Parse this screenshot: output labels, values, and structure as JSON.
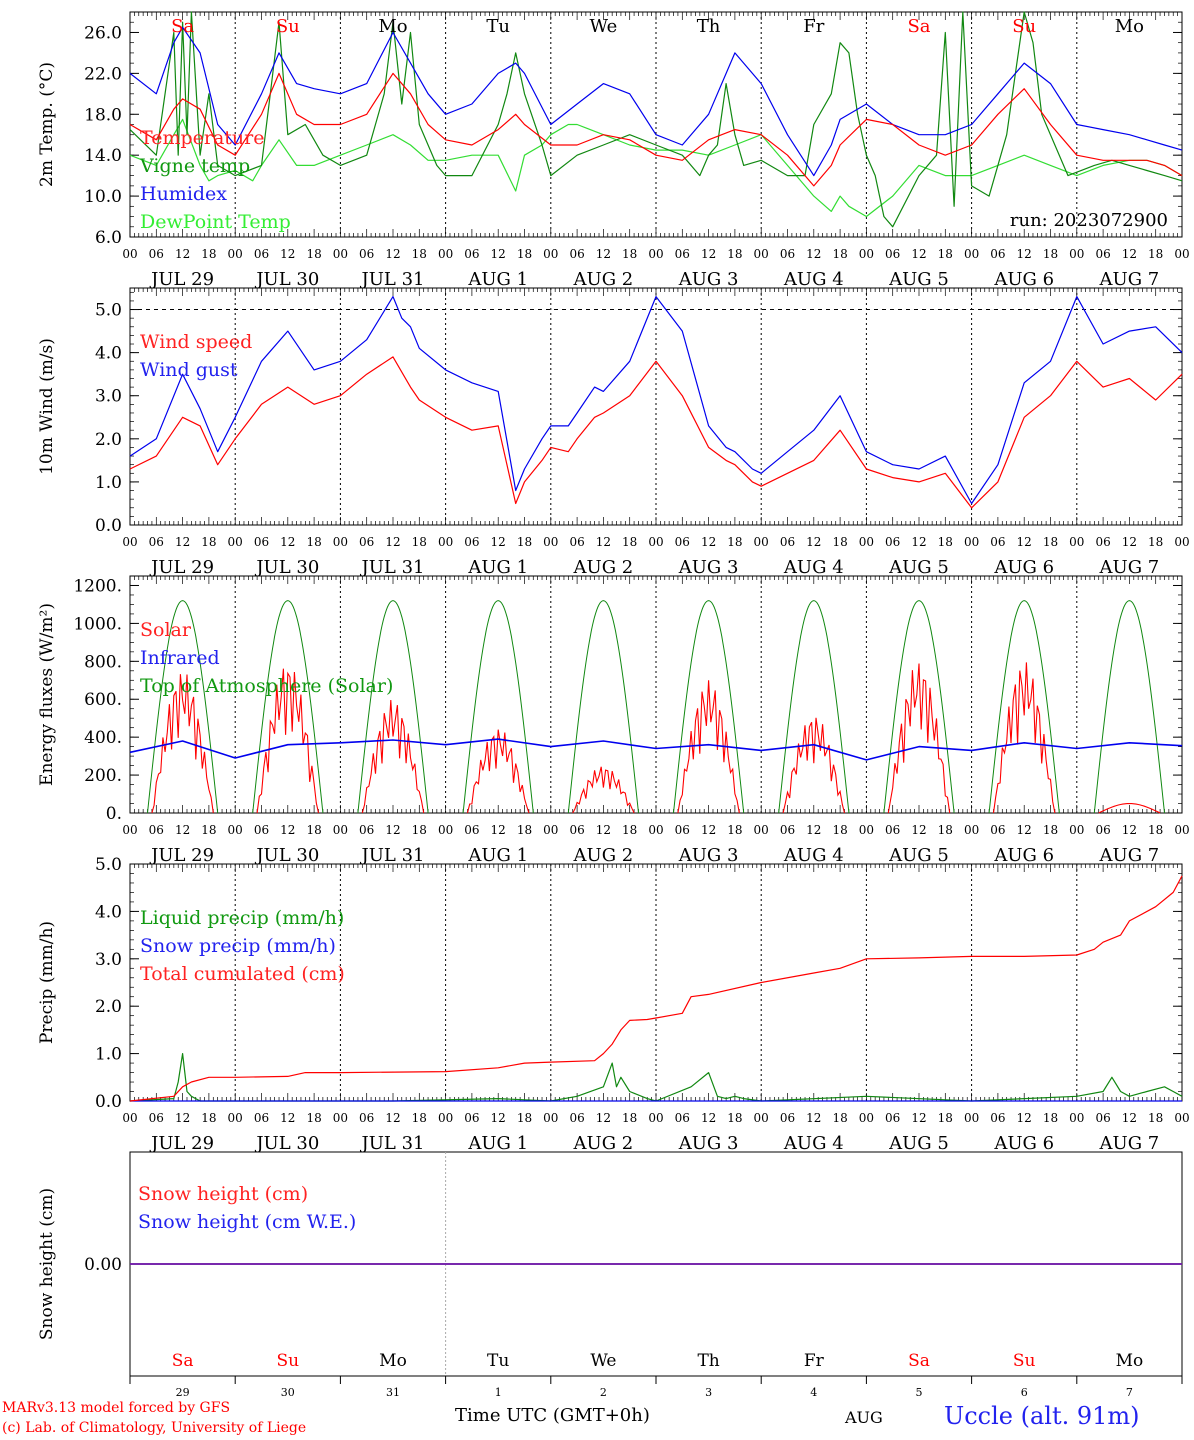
{
  "run_label": "run: 2023072900",
  "weekdays": [
    {
      "label": "Sa",
      "color": "#ff0000"
    },
    {
      "label": "Su",
      "color": "#ff0000"
    },
    {
      "label": "Mo",
      "color": "#000000"
    },
    {
      "label": "Tu",
      "color": "#000000"
    },
    {
      "label": "We",
      "color": "#000000"
    },
    {
      "label": "Th",
      "color": "#000000"
    },
    {
      "label": "Fr",
      "color": "#000000"
    },
    {
      "label": "Sa",
      "color": "#ff0000"
    },
    {
      "label": "Su",
      "color": "#ff0000"
    },
    {
      "label": "Mo",
      "color": "#000000"
    }
  ],
  "date_labels": [
    "JUL 29",
    "JUL 30",
    "JUL 31",
    "AUG  1",
    "AUG  2",
    "AUG  3",
    "AUG  4",
    "AUG  5",
    "AUG  6",
    "AUG  7"
  ],
  "hour_labels": [
    "00",
    "06",
    "12",
    "18"
  ],
  "day_numbers": [
    "29",
    "30",
    "31",
    "1",
    "2",
    "3",
    "4",
    "5",
    "6",
    "7"
  ],
  "footer": {
    "model": "MARv3.13 model forced by GFS",
    "lab": "(c) Lab. of Climatology, University of Liege",
    "axis_title": "Time UTC (GMT+0h)",
    "month": "AUG",
    "station": "Uccle (alt. 91m)"
  },
  "colors": {
    "red": "#ff0000",
    "dkgreen": "#118811",
    "green": "#33dd33",
    "blue": "#0000ee",
    "purple": "#7722aa"
  },
  "chart_data": [
    {
      "type": "line",
      "ylabel": "2m Temp. (°C)",
      "yticks": [
        "6.0",
        "10.0",
        "14.0",
        "18.0",
        "22.0",
        "26.0"
      ],
      "ylim": [
        6,
        28
      ],
      "x_unit": "hours since JUL 29 00 UTC",
      "series": [
        {
          "name": "Temperature",
          "color": "#ff0000",
          "x": [
            0,
            6,
            10,
            12,
            16,
            20,
            24,
            30,
            34,
            38,
            42,
            48,
            54,
            60,
            64,
            68,
            72,
            78,
            84,
            88,
            90,
            96,
            102,
            108,
            114,
            120,
            126,
            132,
            138,
            144,
            150,
            156,
            160,
            162,
            168,
            174,
            180,
            186,
            192,
            198,
            204,
            210,
            216,
            222,
            228,
            232,
            236,
            240
          ],
          "y": [
            17,
            15.5,
            18.5,
            19.5,
            18.5,
            15,
            14,
            18,
            22,
            18,
            17,
            17,
            18,
            22,
            20,
            17,
            15.5,
            15,
            16.5,
            18,
            17,
            15,
            15,
            16,
            15.5,
            14,
            13.5,
            15.5,
            16.5,
            16,
            14,
            11,
            13,
            15,
            17.5,
            17,
            15,
            14,
            15,
            18,
            20.5,
            17,
            14,
            13.5,
            13.5,
            13.5,
            13,
            12
          ]
        },
        {
          "name": "Vigne temp",
          "color": "#118811",
          "x": [
            0,
            6,
            10,
            11,
            12,
            13,
            14,
            16,
            18,
            20,
            24,
            30,
            32,
            34,
            36,
            40,
            44,
            48,
            54,
            58,
            60,
            62,
            64,
            66,
            70,
            72,
            78,
            84,
            86,
            88,
            90,
            94,
            96,
            102,
            108,
            114,
            120,
            126,
            130,
            132,
            134,
            136,
            138,
            140,
            144,
            150,
            154,
            156,
            160,
            162,
            164,
            166,
            168,
            170,
            172,
            174,
            180,
            184,
            186,
            188,
            190,
            192,
            196,
            200,
            202,
            204,
            206,
            208,
            214,
            220,
            224,
            228,
            232,
            236,
            240
          ],
          "y": [
            16.5,
            14,
            26,
            14,
            27,
            16,
            28,
            14,
            20,
            13,
            12,
            13,
            20,
            27,
            16,
            17,
            14,
            13,
            14,
            20,
            27,
            19,
            26,
            17,
            13,
            12,
            12,
            17,
            20,
            24,
            20,
            15,
            12,
            14,
            15,
            16,
            15,
            14,
            12,
            14,
            15,
            21,
            16,
            13,
            13.5,
            12,
            12,
            17,
            20,
            25,
            24,
            18,
            14,
            12,
            8,
            7,
            12,
            14,
            26,
            9,
            28,
            11,
            10,
            16,
            22,
            28,
            25,
            18,
            12,
            13,
            13.5,
            13,
            12.5,
            12,
            11.5
          ]
        },
        {
          "name": "Humidex",
          "color": "#0000ee",
          "x": [
            0,
            6,
            10,
            12,
            16,
            20,
            24,
            30,
            34,
            38,
            42,
            48,
            54,
            60,
            64,
            68,
            72,
            78,
            84,
            88,
            90,
            96,
            102,
            108,
            114,
            120,
            126,
            132,
            138,
            144,
            150,
            156,
            160,
            162,
            168,
            174,
            180,
            186,
            192,
            198,
            204,
            210,
            216,
            222,
            228,
            232,
            236,
            240
          ],
          "y": [
            22,
            20,
            25,
            26.5,
            24,
            17,
            15,
            20,
            24,
            21,
            20.5,
            20,
            21,
            26,
            23,
            20,
            18,
            19,
            22,
            23,
            22,
            17,
            19,
            21,
            20,
            16,
            15,
            18,
            24,
            21,
            16,
            12,
            15,
            17.5,
            19,
            17,
            16,
            16,
            17,
            20,
            23,
            21,
            17,
            16.5,
            16,
            15.5,
            15,
            14.5
          ]
        },
        {
          "name": "DewPoint Temp",
          "color": "#33dd33",
          "x": [
            0,
            6,
            10,
            12,
            16,
            18,
            20,
            24,
            28,
            30,
            34,
            38,
            42,
            48,
            54,
            60,
            64,
            68,
            72,
            78,
            84,
            88,
            90,
            94,
            96,
            100,
            102,
            108,
            114,
            120,
            126,
            132,
            138,
            144,
            150,
            156,
            160,
            162,
            164,
            168,
            174,
            180,
            186,
            192,
            198,
            204,
            210,
            216,
            222,
            228,
            232,
            236,
            240
          ],
          "y": [
            14,
            13,
            16,
            17.5,
            13,
            11.5,
            12,
            12.5,
            11.5,
            13,
            15.5,
            13,
            13,
            14,
            15,
            16,
            15,
            13.5,
            13.5,
            14,
            14,
            10.5,
            14,
            15,
            16,
            17,
            17,
            16,
            15,
            14.5,
            14.5,
            14,
            15,
            16,
            13,
            10,
            8.5,
            10,
            9,
            8,
            10,
            13,
            12,
            12,
            13,
            14,
            13,
            12,
            13,
            13.5,
            13.5,
            13,
            12
          ]
        }
      ]
    },
    {
      "type": "line",
      "ylabel": "10m Wind (m/s)",
      "yticks": [
        "0.0",
        "1.0",
        "2.0",
        "3.0",
        "4.0",
        "5.0"
      ],
      "ylim": [
        0,
        5.5
      ],
      "series": [
        {
          "name": "Wind speed",
          "color": "#ff0000",
          "x": [
            0,
            6,
            12,
            16,
            20,
            24,
            30,
            36,
            42,
            48,
            54,
            60,
            64,
            66,
            72,
            78,
            84,
            88,
            90,
            94,
            96,
            100,
            102,
            106,
            108,
            114,
            120,
            126,
            132,
            136,
            138,
            142,
            144,
            150,
            156,
            162,
            168,
            174,
            180,
            186,
            192,
            198,
            204,
            210,
            216,
            222,
            228,
            234,
            240
          ],
          "y": [
            1.3,
            1.6,
            2.5,
            2.3,
            1.4,
            2.0,
            2.8,
            3.2,
            2.8,
            3.0,
            3.5,
            3.9,
            3.2,
            2.9,
            2.5,
            2.2,
            2.3,
            0.5,
            1.0,
            1.5,
            1.8,
            1.7,
            2.0,
            2.5,
            2.6,
            3.0,
            3.8,
            3.0,
            1.8,
            1.5,
            1.4,
            1.0,
            0.9,
            1.2,
            1.5,
            2.2,
            1.3,
            1.1,
            1.0,
            1.2,
            0.4,
            1.0,
            2.5,
            3.0,
            3.8,
            3.2,
            3.4,
            2.9,
            3.5
          ]
        },
        {
          "name": "Wind gust",
          "color": "#0000ee",
          "x": [
            0,
            6,
            12,
            16,
            20,
            24,
            30,
            36,
            40,
            42,
            48,
            54,
            60,
            62,
            64,
            66,
            72,
            78,
            84,
            88,
            90,
            94,
            96,
            100,
            102,
            106,
            108,
            114,
            120,
            126,
            132,
            136,
            138,
            142,
            144,
            150,
            156,
            162,
            168,
            174,
            180,
            186,
            192,
            198,
            204,
            210,
            216,
            222,
            228,
            234,
            240
          ],
          "y": [
            1.6,
            2.0,
            3.5,
            2.7,
            1.7,
            2.5,
            3.8,
            4.5,
            3.9,
            3.6,
            3.8,
            4.3,
            5.3,
            4.8,
            4.6,
            4.1,
            3.6,
            3.3,
            3.1,
            0.8,
            1.3,
            2.0,
            2.3,
            2.3,
            2.6,
            3.2,
            3.1,
            3.8,
            5.3,
            4.5,
            2.3,
            1.8,
            1.7,
            1.3,
            1.2,
            1.7,
            2.2,
            3.0,
            1.7,
            1.4,
            1.3,
            1.6,
            0.5,
            1.4,
            3.3,
            3.8,
            5.3,
            4.2,
            4.5,
            4.6,
            4.0
          ]
        }
      ]
    },
    {
      "type": "line",
      "ylabel": "Energy fluxes (W/m²)",
      "yticks": [
        "0.",
        "200.",
        "400.",
        "600.",
        "800.",
        "1000.",
        "1200."
      ],
      "ylim": [
        0,
        1250
      ],
      "series": [
        {
          "name": "Solar",
          "color": "#ff0000",
          "day_peaks": [
            750,
            800,
            600,
            450,
            250,
            700,
            520,
            800,
            800,
            50
          ]
        },
        {
          "name": "Infrared",
          "color": "#0000ee",
          "x": [
            0,
            12,
            24,
            36,
            48,
            60,
            72,
            84,
            96,
            108,
            120,
            132,
            144,
            156,
            168,
            180,
            192,
            204,
            216,
            228,
            240
          ],
          "y": [
            320,
            380,
            290,
            360,
            370,
            385,
            360,
            390,
            350,
            380,
            340,
            360,
            330,
            360,
            280,
            350,
            330,
            370,
            340,
            370,
            355
          ]
        },
        {
          "name": "Top of Atmosphere (Solar)",
          "color": "#118811",
          "daily_peak": 1120
        }
      ]
    },
    {
      "type": "line",
      "ylabel": "Precip (mm/h)",
      "yticks": [
        "0.0",
        "1.0",
        "2.0",
        "3.0",
        "4.0",
        "5.0"
      ],
      "ylim": [
        0,
        5
      ],
      "series": [
        {
          "name": "Liquid precip (mm/h)",
          "color": "#118811",
          "x": [
            0,
            10,
            11,
            12,
            13,
            14,
            16,
            20,
            30,
            60,
            84,
            96,
            102,
            108,
            110,
            111,
            112,
            114,
            118,
            120,
            128,
            132,
            134,
            136,
            138,
            140,
            144,
            168,
            192,
            216,
            222,
            224,
            226,
            228,
            232,
            236,
            238,
            240
          ],
          "y": [
            0,
            0.05,
            0.4,
            1.0,
            0.2,
            0.1,
            0,
            0,
            0,
            0,
            0.05,
            0,
            0.1,
            0.3,
            0.8,
            0.3,
            0.5,
            0.2,
            0.05,
            0,
            0.3,
            0.6,
            0.1,
            0.05,
            0.1,
            0.05,
            0,
            0.1,
            0,
            0.1,
            0.2,
            0.5,
            0.2,
            0.1,
            0.2,
            0.3,
            0.2,
            0.1
          ]
        },
        {
          "name": "Snow precip (mm/h)",
          "color": "#0000ee",
          "x": [
            0,
            240
          ],
          "y": [
            0,
            0
          ]
        },
        {
          "name": "Total cumulated (cm)",
          "color": "#ff0000",
          "x": [
            0,
            10,
            12,
            14,
            18,
            24,
            36,
            40,
            48,
            72,
            84,
            90,
            96,
            106,
            108,
            110,
            112,
            114,
            118,
            120,
            126,
            128,
            132,
            144,
            156,
            162,
            168,
            180,
            192,
            204,
            216,
            220,
            222,
            226,
            228,
            234,
            238,
            240
          ],
          "y": [
            0,
            0.1,
            0.3,
            0.4,
            0.5,
            0.5,
            0.52,
            0.6,
            0.6,
            0.62,
            0.7,
            0.8,
            0.82,
            0.85,
            1.0,
            1.2,
            1.5,
            1.7,
            1.72,
            1.75,
            1.85,
            2.2,
            2.25,
            2.5,
            2.7,
            2.8,
            3.0,
            3.02,
            3.05,
            3.05,
            3.08,
            3.2,
            3.35,
            3.5,
            3.8,
            4.1,
            4.4,
            4.75
          ]
        }
      ]
    },
    {
      "type": "line",
      "ylabel": "Snow height (cm)",
      "yticks": [
        "0.00"
      ],
      "ylim": [
        -1,
        1
      ],
      "series": [
        {
          "name": "Snow height (cm)",
          "color": "#ff0000",
          "x": [
            0,
            240
          ],
          "y": [
            0,
            0
          ]
        },
        {
          "name": "Snow height (cm W.E.)",
          "color": "#0000ee",
          "x": [
            0,
            240
          ],
          "y": [
            0,
            0
          ]
        }
      ]
    }
  ]
}
